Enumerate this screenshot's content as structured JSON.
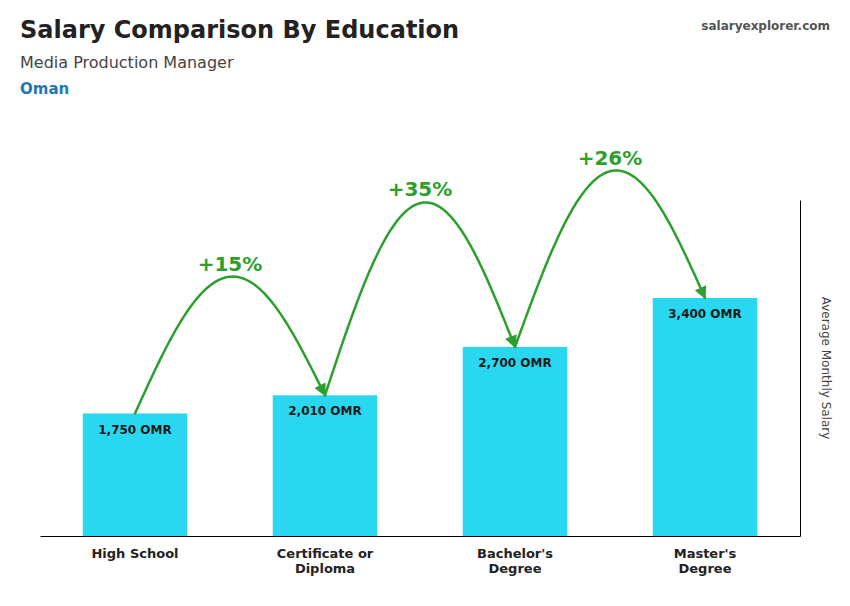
{
  "chart_data": {
    "type": "bar",
    "title": "Salary Comparison By Education",
    "subtitle": "Media Production Manager",
    "country": "Oman",
    "credit": "salaryexplorer.com",
    "ylabel": "Average Monthly Salary",
    "categories": [
      "High School",
      "Certificate or\nDiploma",
      "Bachelor's\nDegree",
      "Master's\nDegree"
    ],
    "values": [
      1750,
      2010,
      2700,
      3400
    ],
    "value_labels": [
      "1,750 OMR",
      "2,010 OMR",
      "2,700 OMR",
      "3,400 OMR"
    ],
    "data_labels": true,
    "annotations": [
      "+15%",
      "+35%",
      "+26%"
    ],
    "color": "#29d8f0",
    "ylim": [
      0,
      4800
    ],
    "tick_labels": "x",
    "grid": false
  }
}
